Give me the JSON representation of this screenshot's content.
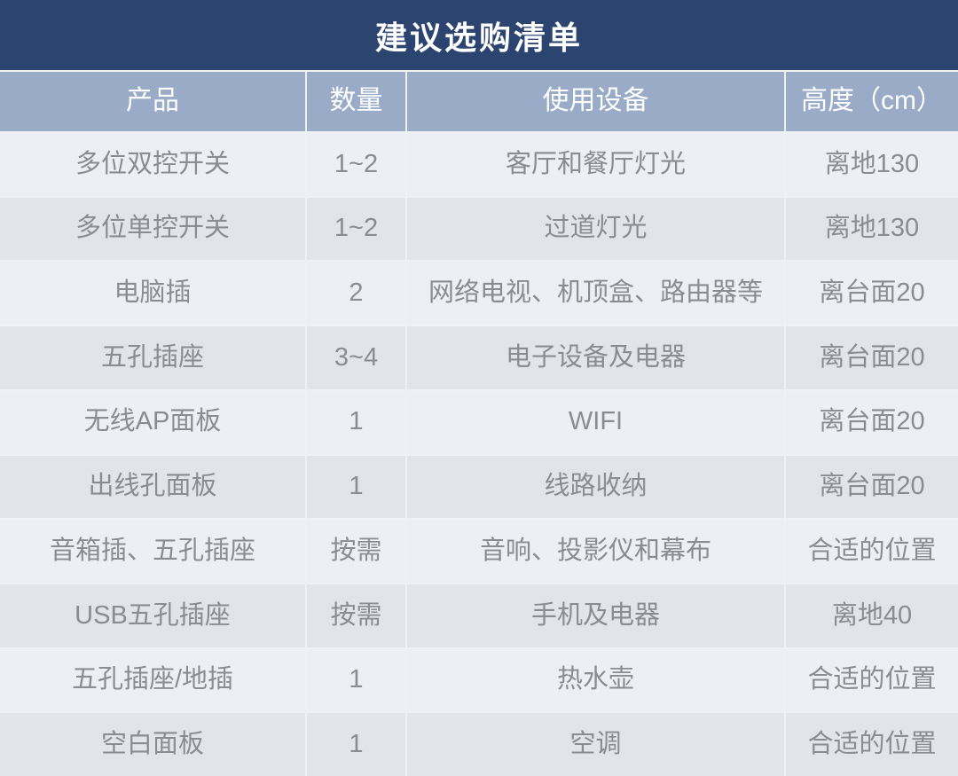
{
  "title": "建议选购清单",
  "colors": {
    "title_bar_bg": "#2b4470",
    "title_text": "#ffffff",
    "header_bg": "#99abc7",
    "header_text": "#ffffff",
    "row_odd_bg": "#edeff5",
    "row_even_bg": "#e2e4e9",
    "grid_line": "#eef1f6",
    "body_text": "#8a8c91"
  },
  "table": {
    "headers": [
      "产品",
      "数量",
      "使用设备",
      "高度（cm）"
    ],
    "rows": [
      [
        "多位双控开关",
        "1~2",
        "客厅和餐厅灯光",
        "离地130"
      ],
      [
        "多位单控开关",
        "1~2",
        "过道灯光",
        "离地130"
      ],
      [
        "电脑插",
        "2",
        "网络电视、机顶盒、路由器等",
        "离台面20"
      ],
      [
        "五孔插座",
        "3~4",
        "电子设备及电器",
        "离台面20"
      ],
      [
        "无线AP面板",
        "1",
        "WIFI",
        "离台面20"
      ],
      [
        "出线孔面板",
        "1",
        "线路收纳",
        "离台面20"
      ],
      [
        "音箱插、五孔插座",
        "按需",
        "音响、投影仪和幕布",
        "合适的位置"
      ],
      [
        "USB五孔插座",
        "按需",
        "手机及电器",
        "离地40"
      ],
      [
        "五孔插座/地插",
        "1",
        "热水壶",
        "合适的位置"
      ],
      [
        "空白面板",
        "1",
        "空调",
        "合适的位置"
      ]
    ]
  }
}
